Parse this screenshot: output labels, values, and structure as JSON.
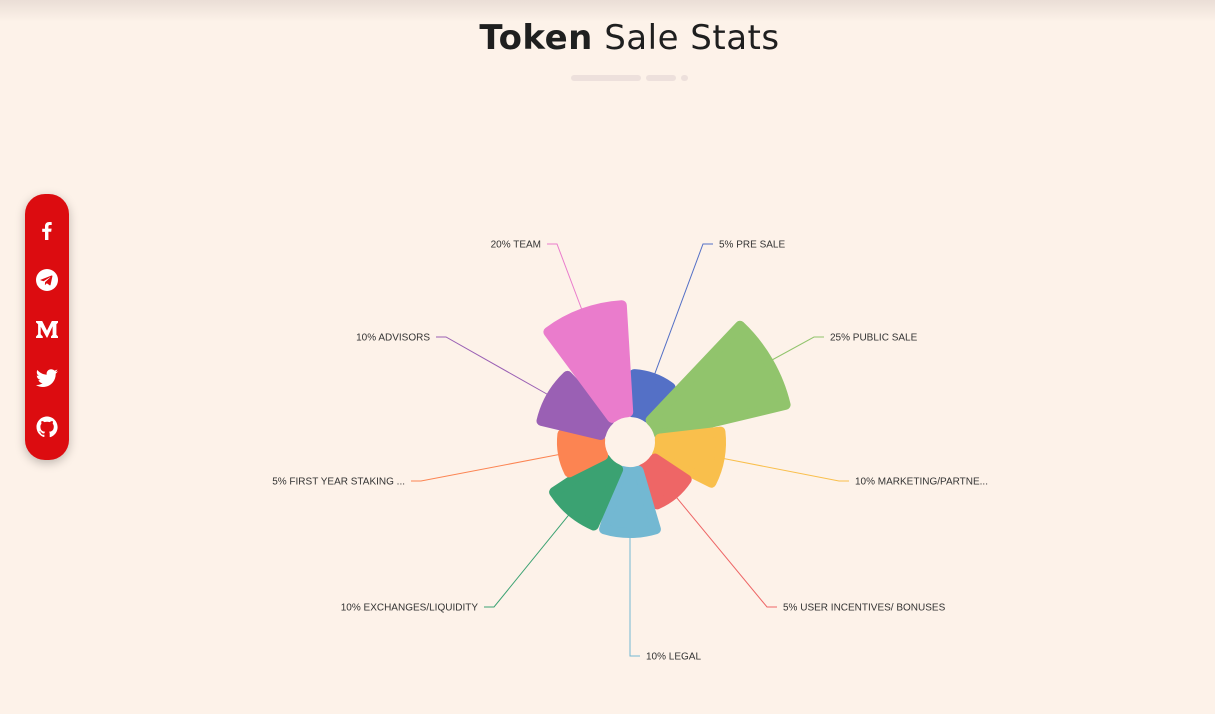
{
  "header": {
    "title_strong": "Token",
    "title_rest": "Sale Stats"
  },
  "social": [
    {
      "name": "facebook-icon"
    },
    {
      "name": "telegram-icon"
    },
    {
      "name": "medium-icon"
    },
    {
      "name": "twitter-icon"
    },
    {
      "name": "github-icon"
    }
  ],
  "colors": {
    "background": "#fdf2e9",
    "social_bar": "#dc0c10",
    "divider": "#ede0dc"
  },
  "chart_data": {
    "type": "nightingale-rose",
    "title": "",
    "series": [
      {
        "label": "5% PRE SALE",
        "value": 5,
        "color": "#5470c6"
      },
      {
        "label": "25% PUBLIC SALE",
        "value": 25,
        "color": "#91c46c"
      },
      {
        "label": "10% MARKETING/PARTNE...",
        "value": 10,
        "color": "#f9bf4c"
      },
      {
        "label": "5% USER INCENTIVES/ BONUSES",
        "value": 5,
        "color": "#ee6666"
      },
      {
        "label": "10% LEGAL",
        "value": 10,
        "color": "#73b8d2"
      },
      {
        "label": "10% EXCHANGES/LIQUIDITY",
        "value": 10,
        "color": "#3ba272"
      },
      {
        "label": "5% FIRST YEAR STAKING ...",
        "value": 5,
        "color": "#fc8452"
      },
      {
        "label": "10% ADVISORS",
        "value": 10,
        "color": "#9a60b4"
      },
      {
        "label": "20% TEAM",
        "value": 20,
        "color": "#ea7ccc"
      }
    ]
  }
}
